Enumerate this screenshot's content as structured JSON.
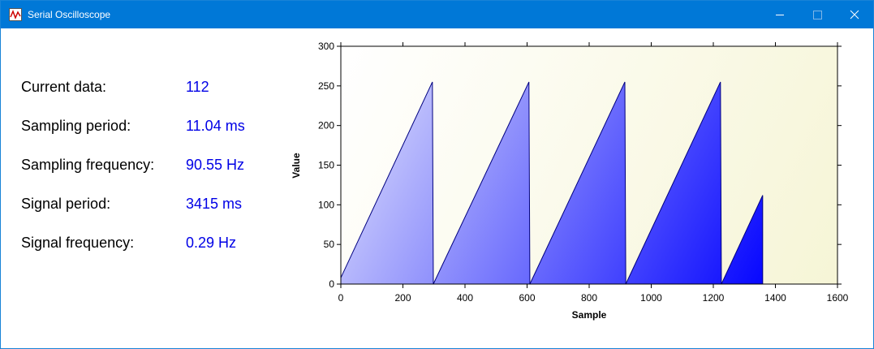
{
  "window": {
    "title": "Serial Oscilloscope"
  },
  "info": {
    "rows": [
      {
        "label": "Current data:",
        "value": "112"
      },
      {
        "label": "Sampling period:",
        "value": "11.04 ms"
      },
      {
        "label": "Sampling frequency:",
        "value": "90.55 Hz"
      },
      {
        "label": "Signal period:",
        "value": "3415 ms"
      },
      {
        "label": "Signal frequency:",
        "value": "0.29 Hz"
      }
    ]
  },
  "chart_data": {
    "type": "area",
    "x_label": "Sample",
    "y_label": "Value",
    "x": [
      0,
      295,
      298,
      606,
      609,
      915,
      918,
      1223,
      1226,
      1359
    ],
    "values": [
      8,
      255,
      0,
      255,
      0,
      255,
      0,
      255,
      0,
      112
    ],
    "color": "#0000ff",
    "xlim": [
      0,
      1600
    ],
    "xticks": [
      0,
      200,
      400,
      600,
      800,
      1000,
      1200,
      1400,
      1600
    ],
    "ylim": [
      0,
      300
    ],
    "yticks": [
      0,
      50,
      100,
      150,
      200,
      250,
      300
    ]
  }
}
